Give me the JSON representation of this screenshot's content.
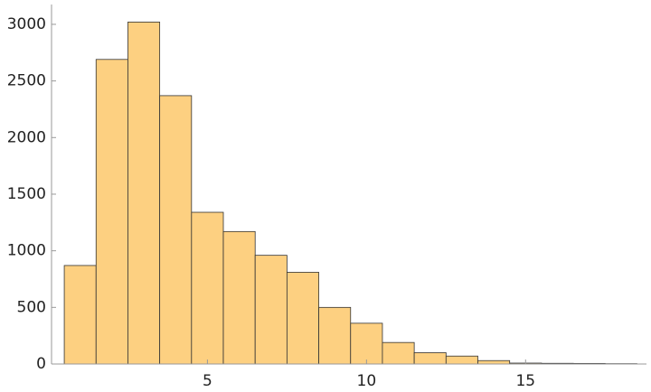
{
  "chart_data": {
    "type": "histogram",
    "bins": [
      0.5,
      1.5,
      2.5,
      3.5,
      4.5,
      5.5,
      6.5,
      7.5,
      8.5,
      9.5,
      10.5,
      11.5,
      12.5,
      13.5,
      14.5,
      15.5,
      16.5,
      17.5,
      18.5
    ],
    "values": [
      870,
      2690,
      3020,
      2370,
      1340,
      1170,
      960,
      810,
      500,
      360,
      190,
      100,
      70,
      30,
      8,
      6,
      5,
      3
    ],
    "color": "#fdd081",
    "xlim": [
      0.1,
      18.8
    ],
    "xticks": [
      5,
      10,
      15
    ],
    "ylim": [
      0,
      3175
    ],
    "yticks": [
      0,
      500,
      1000,
      1500,
      2000,
      2500,
      3000
    ]
  }
}
